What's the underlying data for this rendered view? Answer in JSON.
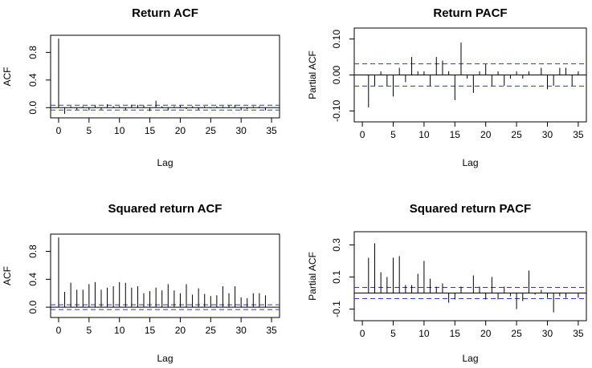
{
  "chart_data": [
    {
      "type": "bar",
      "title": "Return ACF",
      "xlabel": "Lag",
      "ylabel": "ACF",
      "xlim": [
        0,
        35
      ],
      "ylim": [
        -0.1,
        1.0
      ],
      "xticks": [
        0,
        5,
        10,
        15,
        20,
        25,
        30,
        35
      ],
      "yticks": [
        0.0,
        0.4,
        0.8
      ],
      "ytick_labels": [
        "0.0",
        "0.4",
        "0.8"
      ],
      "zero_line": true,
      "confidence_band": 0.035,
      "x": [
        0,
        1,
        2,
        3,
        4,
        5,
        6,
        7,
        8,
        9,
        10,
        11,
        12,
        13,
        14,
        15,
        16,
        17,
        18,
        19,
        20,
        21,
        22,
        23,
        24,
        25,
        26,
        27,
        28,
        29,
        30,
        31,
        32,
        33,
        34
      ],
      "values": [
        1.0,
        -0.09,
        0.02,
        -0.03,
        0.02,
        -0.04,
        0.03,
        -0.03,
        0.05,
        0.02,
        0.02,
        -0.03,
        0.04,
        0.04,
        0.03,
        -0.05,
        0.1,
        0.02,
        -0.04,
        0.02,
        0.03,
        -0.02,
        0.02,
        -0.03,
        0.02,
        -0.01,
        0.02,
        0.02,
        0.03,
        0.04,
        -0.04,
        -0.02,
        0.02,
        0.02,
        -0.04
      ]
    },
    {
      "type": "bar",
      "title": "Return PACF",
      "xlabel": "Lag",
      "ylabel": "Partial ACF",
      "xlim": [
        0,
        35
      ],
      "ylim": [
        -0.12,
        0.12
      ],
      "xticks": [
        0,
        5,
        10,
        15,
        20,
        25,
        30,
        35
      ],
      "yticks": [
        -0.1,
        0.0,
        0.1
      ],
      "ytick_labels": [
        "-0.10",
        "0.00",
        "0.10"
      ],
      "zero_line": true,
      "confidence_band": 0.031,
      "x": [
        1,
        2,
        3,
        4,
        5,
        6,
        7,
        8,
        9,
        10,
        11,
        12,
        13,
        14,
        15,
        16,
        17,
        18,
        19,
        20,
        21,
        22,
        23,
        24,
        25,
        26,
        27,
        28,
        29,
        30,
        31,
        32,
        33,
        34,
        35
      ],
      "values": [
        -0.09,
        -0.03,
        0.01,
        -0.03,
        -0.06,
        0.02,
        -0.02,
        0.05,
        0.01,
        0.01,
        -0.03,
        0.05,
        0.04,
        0.01,
        -0.07,
        0.09,
        -0.01,
        -0.05,
        0.01,
        0.03,
        -0.03,
        0.01,
        -0.03,
        -0.01,
        0.01,
        -0.01,
        0.01,
        0.0,
        0.02,
        -0.04,
        -0.03,
        0.02,
        0.02,
        -0.03,
        0.01
      ]
    },
    {
      "type": "bar",
      "title": "Squared return ACF",
      "xlabel": "Lag",
      "ylabel": "ACF",
      "xlim": [
        0,
        35
      ],
      "ylim": [
        -0.1,
        1.0
      ],
      "xticks": [
        0,
        5,
        10,
        15,
        20,
        25,
        30,
        35
      ],
      "yticks": [
        0.0,
        0.4,
        0.8
      ],
      "ytick_labels": [
        "0.0",
        "0.4",
        "0.8"
      ],
      "zero_line": true,
      "confidence_band": 0.035,
      "x": [
        0,
        1,
        2,
        3,
        4,
        5,
        6,
        7,
        8,
        9,
        10,
        11,
        12,
        13,
        14,
        15,
        16,
        17,
        18,
        19,
        20,
        21,
        22,
        23,
        24,
        25,
        26,
        27,
        28,
        29,
        30,
        31,
        32,
        33,
        34
      ],
      "values": [
        1.0,
        0.22,
        0.35,
        0.25,
        0.25,
        0.33,
        0.36,
        0.25,
        0.28,
        0.3,
        0.36,
        0.35,
        0.28,
        0.3,
        0.2,
        0.23,
        0.28,
        0.24,
        0.33,
        0.24,
        0.2,
        0.33,
        0.18,
        0.27,
        0.19,
        0.16,
        0.17,
        0.3,
        0.2,
        0.3,
        0.14,
        0.13,
        0.2,
        0.2,
        0.17
      ]
    },
    {
      "type": "bar",
      "title": "Squared return PACF",
      "xlabel": "Lag",
      "ylabel": "Partial ACF",
      "xlim": [
        0,
        35
      ],
      "ylim": [
        -0.15,
        0.36
      ],
      "xticks": [
        0,
        5,
        10,
        15,
        20,
        25,
        30,
        35
      ],
      "yticks": [
        -0.1,
        0.1,
        0.3
      ],
      "ytick_labels": [
        "-0.1",
        "0.1",
        "0.3"
      ],
      "zero_line": true,
      "confidence_band": 0.035,
      "x": [
        1,
        2,
        3,
        4,
        5,
        6,
        7,
        8,
        9,
        10,
        11,
        12,
        13,
        14,
        15,
        16,
        17,
        18,
        19,
        20,
        21,
        22,
        23,
        24,
        25,
        26,
        27,
        28,
        29,
        30,
        31,
        32,
        33,
        34,
        35
      ],
      "values": [
        0.22,
        0.31,
        0.13,
        0.1,
        0.22,
        0.23,
        0.05,
        0.05,
        0.12,
        0.2,
        0.09,
        0.04,
        0.06,
        -0.06,
        -0.04,
        0.04,
        0.0,
        0.11,
        0.04,
        -0.04,
        0.1,
        -0.04,
        0.04,
        -0.02,
        -0.1,
        -0.05,
        0.14,
        -0.01,
        0.02,
        -0.03,
        -0.12,
        -0.02,
        -0.03,
        0.0,
        -0.03
      ]
    }
  ]
}
